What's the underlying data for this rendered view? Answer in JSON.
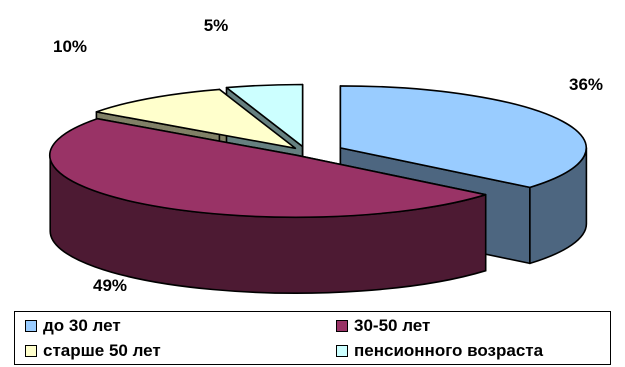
{
  "chart_data": {
    "type": "pie",
    "style": "3d-exploded",
    "slices": [
      {
        "label": "до 30 лет",
        "value": 36,
        "value_label": "36%",
        "color": "#99ccff",
        "side_color": "#4d6680"
      },
      {
        "label": "30-50 лет",
        "value": 49,
        "value_label": "49%",
        "color": "#993366",
        "side_color": "#4d1a33"
      },
      {
        "label": "старше 50 лет",
        "value": 10,
        "value_label": "10%",
        "color": "#ffffcc",
        "side_color": "#808066"
      },
      {
        "label": "пенсионного возраста",
        "value": 5,
        "value_label": "5%",
        "color": "#ccffff",
        "side_color": "#668080"
      }
    ],
    "legend_position": "bottom"
  }
}
